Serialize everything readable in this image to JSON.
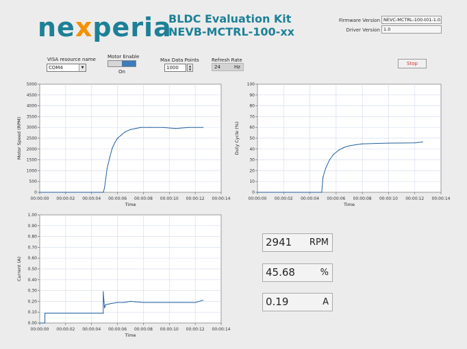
{
  "header": {
    "logo_text_a": "ne",
    "logo_text_x": "x",
    "logo_text_b": "peria",
    "title_line1": "BLDC Evaluation Kit",
    "title_line2": "NEVB-MCTRL-100-xx",
    "firmware_label": "Firmware Version",
    "firmware_value": "NEVC-MCTRL-100-t01-1.0.0",
    "driver_label": "Driver Version",
    "driver_value": "1.0"
  },
  "controls": {
    "visa_label": "VISA resource name",
    "visa_value": "COM4",
    "motor_enable_label": "Motor Enable",
    "motor_state": "On",
    "max_points_label": "Max Data Points",
    "max_points_value": "1000",
    "refresh_label": "Refresh Rate",
    "refresh_value": "24",
    "refresh_unit": "Hz",
    "stop_label": "Stop"
  },
  "readouts": {
    "speed": {
      "value": "2941",
      "unit": "RPM"
    },
    "duty": {
      "value": "45.68",
      "unit": "%"
    },
    "current": {
      "value": "0.19",
      "unit": "A"
    }
  },
  "colors": {
    "trace": "#1f5e9c",
    "grid": "#d7ddf2",
    "logo_teal": "#1d8096",
    "logo_orange": "#f39200"
  },
  "chart_data": [
    {
      "type": "line",
      "ylabel": "Motor Speed (RPM)",
      "xlabel": "Time",
      "ylim": [
        0,
        5000
      ],
      "yticks": [
        "0",
        "500",
        "1000",
        "1500",
        "2000",
        "2500",
        "3000",
        "3500",
        "4000",
        "4500",
        "5000"
      ],
      "xticks": [
        "00:00:00",
        "00:00:02",
        "00:00:04",
        "00:00:06",
        "00:00:08",
        "00:00:10",
        "00:00:12",
        "00:00:14"
      ],
      "xlim": [
        0,
        14
      ],
      "x": [
        0,
        4.9,
        5.0,
        5.2,
        5.4,
        5.6,
        5.8,
        6.0,
        6.3,
        6.6,
        7.0,
        7.4,
        7.8,
        8.5,
        9.5,
        10.5,
        11.5,
        12.6
      ],
      "values": [
        0,
        0,
        200,
        1100,
        1600,
        2050,
        2300,
        2500,
        2650,
        2800,
        2900,
        2950,
        3000,
        3000,
        3000,
        2950,
        3000,
        3000
      ]
    },
    {
      "type": "line",
      "ylabel": "Duty Cycle (%)",
      "xlabel": "Time",
      "ylim": [
        0,
        100
      ],
      "yticks": [
        "0",
        "10",
        "20",
        "30",
        "40",
        "50",
        "60",
        "70",
        "80",
        "90",
        "100"
      ],
      "xticks": [
        "00:00:00",
        "00:00:02",
        "00:00:04",
        "00:00:06",
        "00:00:08",
        "00:00:10",
        "00:00:12",
        "00:00:14"
      ],
      "xlim": [
        0,
        14
      ],
      "x": [
        0,
        4.9,
        5.0,
        5.2,
        5.5,
        5.8,
        6.2,
        6.6,
        7.0,
        7.5,
        8.0,
        9.0,
        10.0,
        11.0,
        12.0,
        12.6
      ],
      "values": [
        0,
        0,
        14,
        22,
        30,
        35,
        39,
        41.5,
        43,
        44,
        44.8,
        45.2,
        45.5,
        45.6,
        45.7,
        46.5
      ]
    },
    {
      "type": "line",
      "ylabel": "Current (A)",
      "xlabel": "Time",
      "ylim": [
        0,
        1
      ],
      "yticks": [
        "0.00",
        "0.10",
        "0.20",
        "0.30",
        "0.40",
        "0.50",
        "0.60",
        "0.70",
        "0.80",
        "0.90",
        "1.00"
      ],
      "xticks": [
        "00:00:00",
        "00:00:02",
        "00:00:04",
        "00:00:06",
        "00:00:08",
        "00:00:10",
        "00:00:12",
        "00:00:14"
      ],
      "xlim": [
        0,
        14
      ],
      "x": [
        0,
        0.4,
        0.4,
        4.9,
        4.9,
        5.0,
        5.1,
        5.5,
        6.0,
        6.5,
        7.0,
        8.0,
        9.0,
        10.0,
        11.0,
        12.0,
        12.6
      ],
      "values": [
        0,
        0,
        0.09,
        0.09,
        0.29,
        0.14,
        0.17,
        0.18,
        0.19,
        0.19,
        0.2,
        0.19,
        0.19,
        0.19,
        0.19,
        0.19,
        0.21
      ]
    }
  ]
}
